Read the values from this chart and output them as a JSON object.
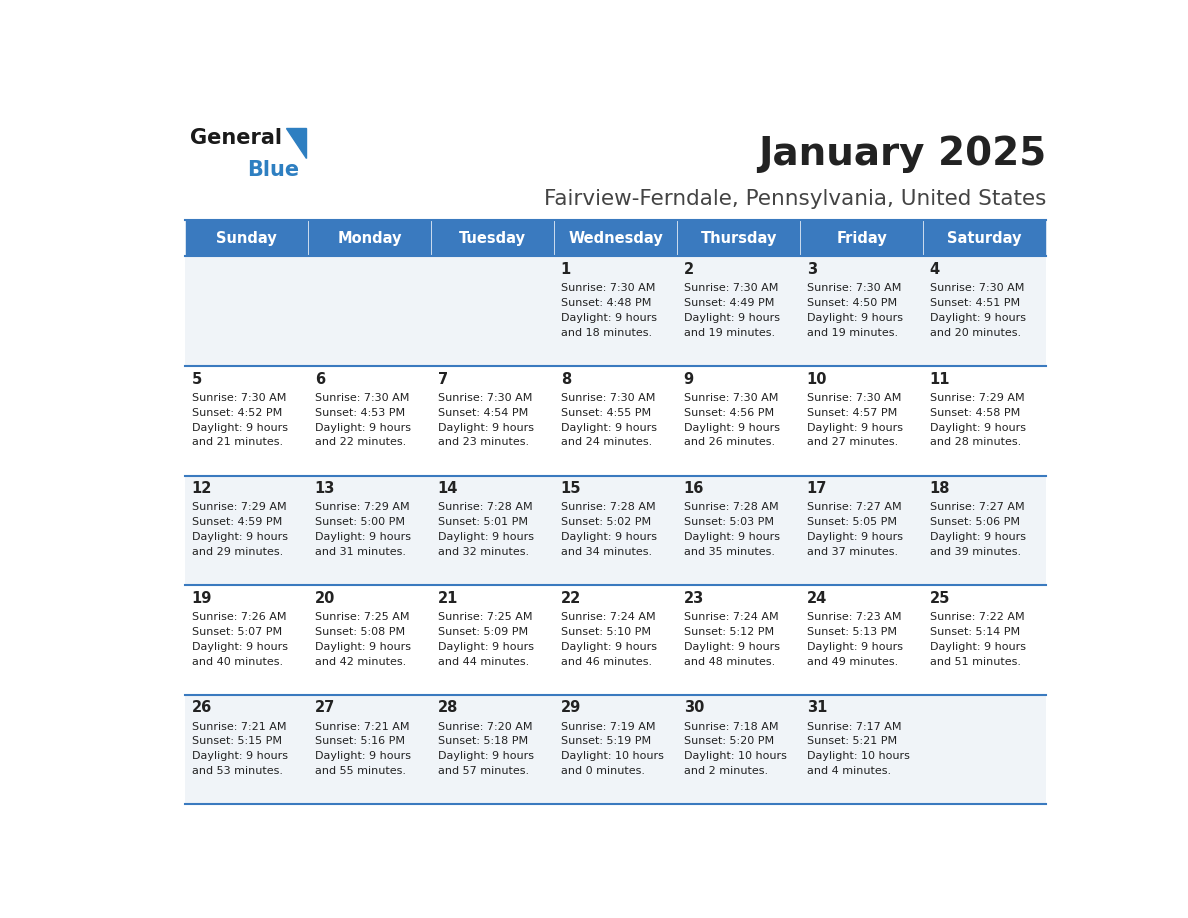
{
  "title": "January 2025",
  "subtitle": "Fairview-Ferndale, Pennsylvania, United States",
  "days_of_week": [
    "Sunday",
    "Monday",
    "Tuesday",
    "Wednesday",
    "Thursday",
    "Friday",
    "Saturday"
  ],
  "header_bg": "#3a7abf",
  "header_text": "#ffffff",
  "row_bg_odd": "#f0f4f8",
  "row_bg_even": "#ffffff",
  "separator_color": "#3a7abf",
  "text_color": "#222222",
  "title_color": "#222222",
  "subtitle_color": "#444444",
  "logo_general_color": "#1a1a1a",
  "logo_blue_color": "#2e7fc1",
  "calendar_data": [
    {
      "day": 1,
      "col": 3,
      "row": 0,
      "sunrise": "7:30 AM",
      "sunset": "4:48 PM",
      "daylight_line1": "Daylight: 9 hours",
      "daylight_line2": "and 18 minutes."
    },
    {
      "day": 2,
      "col": 4,
      "row": 0,
      "sunrise": "7:30 AM",
      "sunset": "4:49 PM",
      "daylight_line1": "Daylight: 9 hours",
      "daylight_line2": "and 19 minutes."
    },
    {
      "day": 3,
      "col": 5,
      "row": 0,
      "sunrise": "7:30 AM",
      "sunset": "4:50 PM",
      "daylight_line1": "Daylight: 9 hours",
      "daylight_line2": "and 19 minutes."
    },
    {
      "day": 4,
      "col": 6,
      "row": 0,
      "sunrise": "7:30 AM",
      "sunset": "4:51 PM",
      "daylight_line1": "Daylight: 9 hours",
      "daylight_line2": "and 20 minutes."
    },
    {
      "day": 5,
      "col": 0,
      "row": 1,
      "sunrise": "7:30 AM",
      "sunset": "4:52 PM",
      "daylight_line1": "Daylight: 9 hours",
      "daylight_line2": "and 21 minutes."
    },
    {
      "day": 6,
      "col": 1,
      "row": 1,
      "sunrise": "7:30 AM",
      "sunset": "4:53 PM",
      "daylight_line1": "Daylight: 9 hours",
      "daylight_line2": "and 22 minutes."
    },
    {
      "day": 7,
      "col": 2,
      "row": 1,
      "sunrise": "7:30 AM",
      "sunset": "4:54 PM",
      "daylight_line1": "Daylight: 9 hours",
      "daylight_line2": "and 23 minutes."
    },
    {
      "day": 8,
      "col": 3,
      "row": 1,
      "sunrise": "7:30 AM",
      "sunset": "4:55 PM",
      "daylight_line1": "Daylight: 9 hours",
      "daylight_line2": "and 24 minutes."
    },
    {
      "day": 9,
      "col": 4,
      "row": 1,
      "sunrise": "7:30 AM",
      "sunset": "4:56 PM",
      "daylight_line1": "Daylight: 9 hours",
      "daylight_line2": "and 26 minutes."
    },
    {
      "day": 10,
      "col": 5,
      "row": 1,
      "sunrise": "7:30 AM",
      "sunset": "4:57 PM",
      "daylight_line1": "Daylight: 9 hours",
      "daylight_line2": "and 27 minutes."
    },
    {
      "day": 11,
      "col": 6,
      "row": 1,
      "sunrise": "7:29 AM",
      "sunset": "4:58 PM",
      "daylight_line1": "Daylight: 9 hours",
      "daylight_line2": "and 28 minutes."
    },
    {
      "day": 12,
      "col": 0,
      "row": 2,
      "sunrise": "7:29 AM",
      "sunset": "4:59 PM",
      "daylight_line1": "Daylight: 9 hours",
      "daylight_line2": "and 29 minutes."
    },
    {
      "day": 13,
      "col": 1,
      "row": 2,
      "sunrise": "7:29 AM",
      "sunset": "5:00 PM",
      "daylight_line1": "Daylight: 9 hours",
      "daylight_line2": "and 31 minutes."
    },
    {
      "day": 14,
      "col": 2,
      "row": 2,
      "sunrise": "7:28 AM",
      "sunset": "5:01 PM",
      "daylight_line1": "Daylight: 9 hours",
      "daylight_line2": "and 32 minutes."
    },
    {
      "day": 15,
      "col": 3,
      "row": 2,
      "sunrise": "7:28 AM",
      "sunset": "5:02 PM",
      "daylight_line1": "Daylight: 9 hours",
      "daylight_line2": "and 34 minutes."
    },
    {
      "day": 16,
      "col": 4,
      "row": 2,
      "sunrise": "7:28 AM",
      "sunset": "5:03 PM",
      "daylight_line1": "Daylight: 9 hours",
      "daylight_line2": "and 35 minutes."
    },
    {
      "day": 17,
      "col": 5,
      "row": 2,
      "sunrise": "7:27 AM",
      "sunset": "5:05 PM",
      "daylight_line1": "Daylight: 9 hours",
      "daylight_line2": "and 37 minutes."
    },
    {
      "day": 18,
      "col": 6,
      "row": 2,
      "sunrise": "7:27 AM",
      "sunset": "5:06 PM",
      "daylight_line1": "Daylight: 9 hours",
      "daylight_line2": "and 39 minutes."
    },
    {
      "day": 19,
      "col": 0,
      "row": 3,
      "sunrise": "7:26 AM",
      "sunset": "5:07 PM",
      "daylight_line1": "Daylight: 9 hours",
      "daylight_line2": "and 40 minutes."
    },
    {
      "day": 20,
      "col": 1,
      "row": 3,
      "sunrise": "7:25 AM",
      "sunset": "5:08 PM",
      "daylight_line1": "Daylight: 9 hours",
      "daylight_line2": "and 42 minutes."
    },
    {
      "day": 21,
      "col": 2,
      "row": 3,
      "sunrise": "7:25 AM",
      "sunset": "5:09 PM",
      "daylight_line1": "Daylight: 9 hours",
      "daylight_line2": "and 44 minutes."
    },
    {
      "day": 22,
      "col": 3,
      "row": 3,
      "sunrise": "7:24 AM",
      "sunset": "5:10 PM",
      "daylight_line1": "Daylight: 9 hours",
      "daylight_line2": "and 46 minutes."
    },
    {
      "day": 23,
      "col": 4,
      "row": 3,
      "sunrise": "7:24 AM",
      "sunset": "5:12 PM",
      "daylight_line1": "Daylight: 9 hours",
      "daylight_line2": "and 48 minutes."
    },
    {
      "day": 24,
      "col": 5,
      "row": 3,
      "sunrise": "7:23 AM",
      "sunset": "5:13 PM",
      "daylight_line1": "Daylight: 9 hours",
      "daylight_line2": "and 49 minutes."
    },
    {
      "day": 25,
      "col": 6,
      "row": 3,
      "sunrise": "7:22 AM",
      "sunset": "5:14 PM",
      "daylight_line1": "Daylight: 9 hours",
      "daylight_line2": "and 51 minutes."
    },
    {
      "day": 26,
      "col": 0,
      "row": 4,
      "sunrise": "7:21 AM",
      "sunset": "5:15 PM",
      "daylight_line1": "Daylight: 9 hours",
      "daylight_line2": "and 53 minutes."
    },
    {
      "day": 27,
      "col": 1,
      "row": 4,
      "sunrise": "7:21 AM",
      "sunset": "5:16 PM",
      "daylight_line1": "Daylight: 9 hours",
      "daylight_line2": "and 55 minutes."
    },
    {
      "day": 28,
      "col": 2,
      "row": 4,
      "sunrise": "7:20 AM",
      "sunset": "5:18 PM",
      "daylight_line1": "Daylight: 9 hours",
      "daylight_line2": "and 57 minutes."
    },
    {
      "day": 29,
      "col": 3,
      "row": 4,
      "sunrise": "7:19 AM",
      "sunset": "5:19 PM",
      "daylight_line1": "Daylight: 10 hours",
      "daylight_line2": "and 0 minutes."
    },
    {
      "day": 30,
      "col": 4,
      "row": 4,
      "sunrise": "7:18 AM",
      "sunset": "5:20 PM",
      "daylight_line1": "Daylight: 10 hours",
      "daylight_line2": "and 2 minutes."
    },
    {
      "day": 31,
      "col": 5,
      "row": 4,
      "sunrise": "7:17 AM",
      "sunset": "5:21 PM",
      "daylight_line1": "Daylight: 10 hours",
      "daylight_line2": "and 4 minutes."
    }
  ],
  "num_rows": 5,
  "num_cols": 7
}
